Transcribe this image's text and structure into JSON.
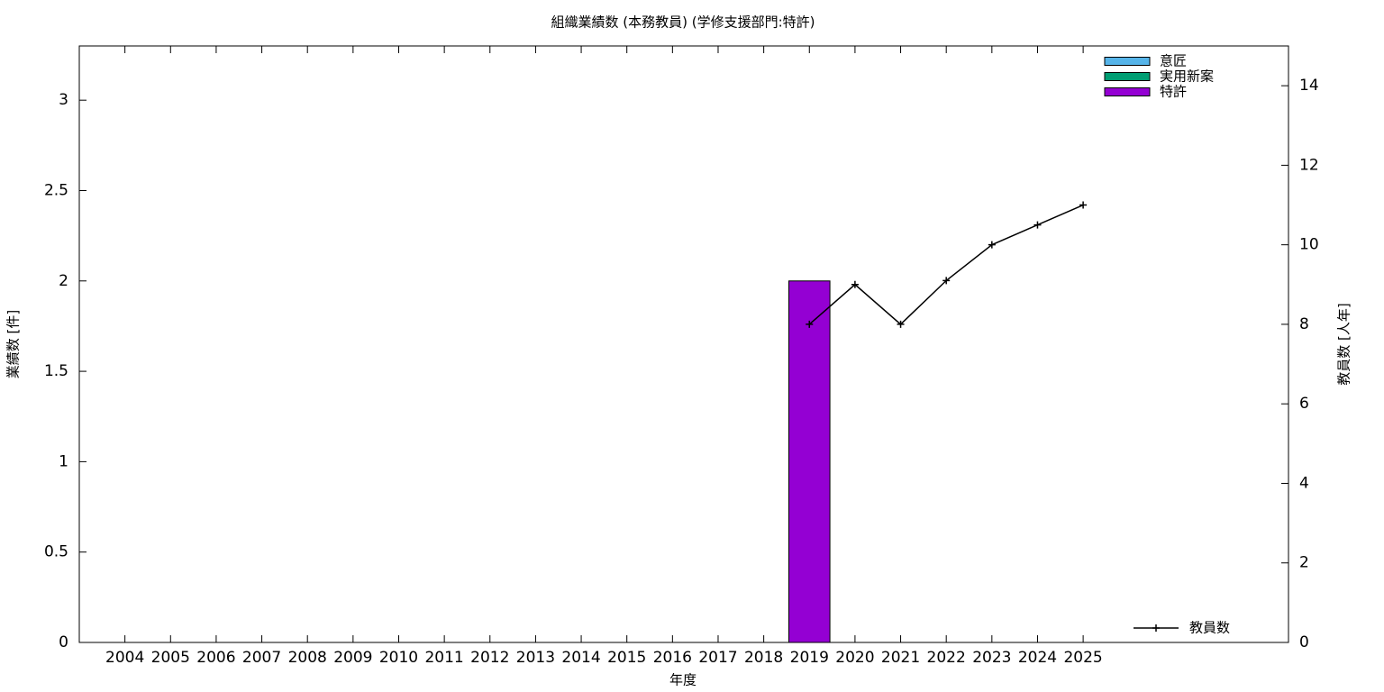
{
  "chart_data": {
    "type": "bar",
    "title": "組織業績数 (本務教員) (学修支援部門:特許)",
    "xlabel": "年度",
    "ylabel": "業績数 [件]",
    "y2label": "教員数 [人年]",
    "categories": [
      "2004",
      "2005",
      "2006",
      "2007",
      "2008",
      "2009",
      "2010",
      "2011",
      "2012",
      "2013",
      "2014",
      "2015",
      "2016",
      "2017",
      "2018",
      "2019",
      "2020",
      "2021",
      "2022",
      "2023",
      "2024",
      "2025"
    ],
    "series": [
      {
        "name": "意匠",
        "color": "#56b4e9",
        "values": [
          0,
          0,
          0,
          0,
          0,
          0,
          0,
          0,
          0,
          0,
          0,
          0,
          0,
          0,
          0,
          0,
          0,
          0,
          0,
          0,
          0,
          0
        ]
      },
      {
        "name": "実用新案",
        "color": "#009e73",
        "values": [
          0,
          0,
          0,
          0,
          0,
          0,
          0,
          0,
          0,
          0,
          0,
          0,
          0,
          0,
          0,
          0,
          0,
          0,
          0,
          0,
          0,
          0
        ]
      },
      {
        "name": "特許",
        "color": "#9400d3",
        "values": [
          0,
          0,
          0,
          0,
          0,
          0,
          0,
          0,
          0,
          0,
          0,
          0,
          0,
          0,
          0,
          2,
          0,
          0,
          0,
          0,
          0,
          0
        ]
      },
      {
        "name": "教員数",
        "color": "#000000",
        "type": "line",
        "axis": "y2",
        "values": [
          null,
          null,
          null,
          null,
          null,
          null,
          null,
          null,
          null,
          null,
          null,
          null,
          null,
          null,
          null,
          8,
          9,
          8,
          9.1,
          10,
          10.5,
          11
        ]
      }
    ],
    "stacked": true,
    "ylim": [
      0,
      3.3
    ],
    "yticks": [
      0,
      0.5,
      1,
      1.5,
      2,
      2.5,
      3
    ],
    "y2lim": [
      0,
      15
    ],
    "y2ticks": [
      0,
      2,
      4,
      6,
      8,
      10,
      12,
      14
    ]
  }
}
